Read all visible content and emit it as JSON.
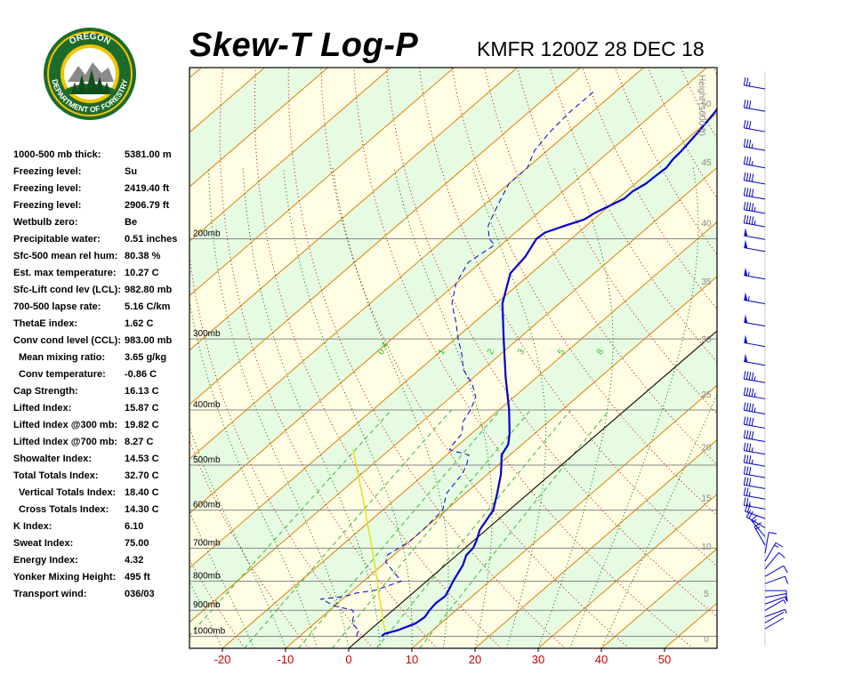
{
  "header": {
    "title": "Skew-T Log-P",
    "station": "KMFR 1200Z 28 DEC 18"
  },
  "logo": {
    "top_text": "OREGON",
    "bottom_text": "DEPARTMENT OF FORESTRY"
  },
  "indices": [
    {
      "label": "1000-500 mb thick:",
      "value": "5381.00 m",
      "indent": false
    },
    {
      "label": "Freezing level:",
      "value": "Su",
      "indent": false
    },
    {
      "label": "Freezing level:",
      "value": "2419.40 ft",
      "indent": false
    },
    {
      "label": "Freezing level:",
      "value": "2906.79 ft",
      "indent": false
    },
    {
      "label": "Wetbulb zero:",
      "value": "Be",
      "indent": false
    },
    {
      "label": "Precipitable water:",
      "value": "0.51 inches",
      "indent": false
    },
    {
      "label": "Sfc-500 mean rel hum:",
      "value": "80.38 %",
      "indent": false
    },
    {
      "label": "Est. max temperature:",
      "value": "10.27 C",
      "indent": false
    },
    {
      "label": "Sfc-Lift cond lev (LCL):",
      "value": "982.80 mb",
      "indent": false
    },
    {
      "label": "700-500 lapse rate:",
      "value": "5.16 C/km",
      "indent": false
    },
    {
      "label": "ThetaE index:",
      "value": "1.62 C",
      "indent": false
    },
    {
      "label": "Conv cond level (CCL):",
      "value": "983.00 mb",
      "indent": false
    },
    {
      "label": "Mean mixing ratio:",
      "value": "3.65 g/kg",
      "indent": true
    },
    {
      "label": "Conv temperature:",
      "value": "-0.86 C",
      "indent": true
    },
    {
      "label": "Cap Strength:",
      "value": "16.13 C",
      "indent": false
    },
    {
      "label": "Lifted Index:",
      "value": "15.87 C",
      "indent": false
    },
    {
      "label": "Lifted Index @300 mb:",
      "value": "19.82 C",
      "indent": false
    },
    {
      "label": "Lifted Index @700 mb:",
      "value": "8.27 C",
      "indent": false
    },
    {
      "label": "Showalter Index:",
      "value": "14.53 C",
      "indent": false
    },
    {
      "label": "Total Totals Index:",
      "value": "32.70 C",
      "indent": false
    },
    {
      "label": "Vertical Totals Index:",
      "value": "18.40 C",
      "indent": true
    },
    {
      "label": "Cross Totals Index:",
      "value": "14.30 C",
      "indent": true
    },
    {
      "label": "K Index:",
      "value": "6.10",
      "indent": false
    },
    {
      "label": "Sweat Index:",
      "value": "75.00",
      "indent": false
    },
    {
      "label": "Energy Index:",
      "value": "4.32",
      "indent": false
    },
    {
      "label": "Yonker Mixing Height:",
      "value": "495 ft",
      "indent": false
    },
    {
      "label": "Transport wind:",
      "value": "036/03",
      "indent": false
    }
  ],
  "chart_data": {
    "type": "skew-t log-p",
    "x_ticks": [
      -20,
      -10,
      0,
      10,
      20,
      30,
      40,
      50
    ],
    "xlim": [
      -26,
      58
    ],
    "plim": [
      1050,
      100
    ],
    "pressure_levels": [
      {
        "p": 1000,
        "label": "1000mb"
      },
      {
        "p": 900,
        "label": "900mb"
      },
      {
        "p": 800,
        "label": "800mb"
      },
      {
        "p": 700,
        "label": "700mb"
      },
      {
        "p": 600,
        "label": "600mb"
      },
      {
        "p": 500,
        "label": "500mb"
      },
      {
        "p": 400,
        "label": "400mb"
      },
      {
        "p": 300,
        "label": "300mb"
      },
      {
        "p": 200,
        "label": "200mb"
      }
    ],
    "height_axis": {
      "label": "Height (1000 ft)",
      "ticks": [
        {
          "v": 0,
          "p": 1013
        },
        {
          "v": 5,
          "p": 843
        },
        {
          "v": 10,
          "p": 697
        },
        {
          "v": 15,
          "p": 572
        },
        {
          "v": 20,
          "p": 466
        },
        {
          "v": 25,
          "p": 376
        },
        {
          "v": 30,
          "p": 301
        },
        {
          "v": 35,
          "p": 238
        },
        {
          "v": 40,
          "p": 188
        },
        {
          "v": 45,
          "p": 147
        },
        {
          "v": 50,
          "p": 116
        }
      ]
    },
    "mixing_ratio_labels": [
      "0.4",
      "1",
      "2",
      "3",
      "5",
      "8"
    ],
    "temperature": [
      {
        "p": 1000,
        "t": 3.0
      },
      {
        "p": 990,
        "t": 3.0
      },
      {
        "p": 975,
        "t": 4.5
      },
      {
        "p": 950,
        "t": 6.0
      },
      {
        "p": 925,
        "t": 6.3
      },
      {
        "p": 900,
        "t": 5.8
      },
      {
        "p": 875,
        "t": 5.5
      },
      {
        "p": 850,
        "t": 5.7
      },
      {
        "p": 825,
        "t": 5.0
      },
      {
        "p": 800,
        "t": 4.2
      },
      {
        "p": 750,
        "t": 2.8
      },
      {
        "p": 720,
        "t": 1.5
      },
      {
        "p": 700,
        "t": 1.3
      },
      {
        "p": 680,
        "t": 0.5
      },
      {
        "p": 650,
        "t": -1.0
      },
      {
        "p": 600,
        "t": -2.5
      },
      {
        "p": 560,
        "t": -5.0
      },
      {
        "p": 520,
        "t": -7.8
      },
      {
        "p": 500,
        "t": -9.5
      },
      {
        "p": 480,
        "t": -11.3
      },
      {
        "p": 460,
        "t": -12.2
      },
      {
        "p": 440,
        "t": -14.0
      },
      {
        "p": 400,
        "t": -18.4
      },
      {
        "p": 350,
        "t": -25.0
      },
      {
        "p": 300,
        "t": -32.3
      },
      {
        "p": 260,
        "t": -39.0
      },
      {
        "p": 230,
        "t": -43.3
      },
      {
        "p": 215,
        "t": -44.0
      },
      {
        "p": 200,
        "t": -45.5
      },
      {
        "p": 195,
        "t": -45.3
      },
      {
        "p": 190,
        "t": -43.5
      },
      {
        "p": 185,
        "t": -41.5
      },
      {
        "p": 180,
        "t": -41.0
      },
      {
        "p": 175,
        "t": -40.0
      },
      {
        "p": 170,
        "t": -39.0
      },
      {
        "p": 165,
        "t": -39.0
      },
      {
        "p": 160,
        "t": -38.3
      },
      {
        "p": 155,
        "t": -38.2
      },
      {
        "p": 150,
        "t": -38.0
      },
      {
        "p": 145,
        "t": -38.5
      },
      {
        "p": 140,
        "t": -38.7
      },
      {
        "p": 130,
        "t": -39.5
      },
      {
        "p": 120,
        "t": -40.5
      },
      {
        "p": 110,
        "t": -42.0
      },
      {
        "p": 105,
        "t": -43.0
      }
    ],
    "dewpoint": [
      {
        "p": 1000,
        "t": -1.0
      },
      {
        "p": 975,
        "t": -1.8
      },
      {
        "p": 950,
        "t": -4.0
      },
      {
        "p": 925,
        "t": -5.0
      },
      {
        "p": 900,
        "t": -6.3
      },
      {
        "p": 885,
        "t": -10.0
      },
      {
        "p": 870,
        "t": -12.0
      },
      {
        "p": 860,
        "t": -13.5
      },
      {
        "p": 850,
        "t": -10.0
      },
      {
        "p": 840,
        "t": -9.0
      },
      {
        "p": 830,
        "t": -6.5
      },
      {
        "p": 800,
        "t": -4.0
      },
      {
        "p": 780,
        "t": -6.0
      },
      {
        "p": 760,
        "t": -8.0
      },
      {
        "p": 740,
        "t": -10.0
      },
      {
        "p": 720,
        "t": -11.0
      },
      {
        "p": 700,
        "t": -10.5
      },
      {
        "p": 680,
        "t": -10.0
      },
      {
        "p": 650,
        "t": -10.0
      },
      {
        "p": 600,
        "t": -10.5
      },
      {
        "p": 560,
        "t": -13.0
      },
      {
        "p": 520,
        "t": -14.0
      },
      {
        "p": 500,
        "t": -15.0
      },
      {
        "p": 480,
        "t": -16.5
      },
      {
        "p": 470,
        "t": -20.5
      },
      {
        "p": 460,
        "t": -21.0
      },
      {
        "p": 440,
        "t": -21.5
      },
      {
        "p": 420,
        "t": -23.5
      },
      {
        "p": 400,
        "t": -24.5
      },
      {
        "p": 380,
        "t": -26.0
      },
      {
        "p": 360,
        "t": -29.0
      },
      {
        "p": 340,
        "t": -33.0
      },
      {
        "p": 320,
        "t": -36.0
      },
      {
        "p": 300,
        "t": -39.5
      },
      {
        "p": 280,
        "t": -43.0
      },
      {
        "p": 260,
        "t": -47.0
      },
      {
        "p": 240,
        "t": -50.0
      },
      {
        "p": 220,
        "t": -52.0
      },
      {
        "p": 205,
        "t": -51.0
      },
      {
        "p": 200,
        "t": -53.0
      },
      {
        "p": 190,
        "t": -55.5
      },
      {
        "p": 180,
        "t": -57.0
      },
      {
        "p": 170,
        "t": -58.5
      },
      {
        "p": 160,
        "t": -60.0
      },
      {
        "p": 150,
        "t": -60.0
      },
      {
        "p": 140,
        "t": -62.0
      },
      {
        "p": 130,
        "t": -63.0
      },
      {
        "p": 120,
        "t": -63.5
      },
      {
        "p": 110,
        "t": -63.5
      }
    ],
    "parcel": [
      {
        "p": 983,
        "t": 2.8
      },
      {
        "p": 950,
        "t": 1.0
      },
      {
        "p": 900,
        "t": -1.8
      },
      {
        "p": 850,
        "t": -4.8
      },
      {
        "p": 800,
        "t": -7.8
      },
      {
        "p": 750,
        "t": -11.1
      },
      {
        "p": 700,
        "t": -14.7
      },
      {
        "p": 650,
        "t": -18.6
      },
      {
        "p": 600,
        "t": -22.8
      },
      {
        "p": 550,
        "t": -27.4
      },
      {
        "p": 500,
        "t": -32.5
      },
      {
        "p": 470,
        "t": -35.8
      }
    ],
    "wind_profile": [
      {
        "p": 1000,
        "dir": 60,
        "spd": 3
      },
      {
        "p": 975,
        "dir": 60,
        "spd": 3
      },
      {
        "p": 950,
        "dir": 70,
        "spd": 5
      },
      {
        "p": 925,
        "dir": 60,
        "spd": 5
      },
      {
        "p": 900,
        "dir": 70,
        "spd": 5
      },
      {
        "p": 875,
        "dir": 80,
        "spd": 10
      },
      {
        "p": 850,
        "dir": 90,
        "spd": 10
      },
      {
        "p": 825,
        "dir": 70,
        "spd": 10
      },
      {
        "p": 800,
        "dir": 60,
        "spd": 10
      },
      {
        "p": 775,
        "dir": 40,
        "spd": 10
      },
      {
        "p": 750,
        "dir": 30,
        "spd": 15
      },
      {
        "p": 725,
        "dir": 10,
        "spd": 10
      },
      {
        "p": 700,
        "dir": 330,
        "spd": 15
      },
      {
        "p": 675,
        "dir": 320,
        "spd": 15
      },
      {
        "p": 650,
        "dir": 300,
        "spd": 20
      },
      {
        "p": 625,
        "dir": 290,
        "spd": 20
      },
      {
        "p": 600,
        "dir": 280,
        "spd": 25
      },
      {
        "p": 575,
        "dir": 280,
        "spd": 25
      },
      {
        "p": 550,
        "dir": 280,
        "spd": 30
      },
      {
        "p": 525,
        "dir": 280,
        "spd": 30
      },
      {
        "p": 500,
        "dir": 280,
        "spd": 35
      },
      {
        "p": 475,
        "dir": 280,
        "spd": 35
      },
      {
        "p": 450,
        "dir": 280,
        "spd": 40
      },
      {
        "p": 425,
        "dir": 280,
        "spd": 40
      },
      {
        "p": 400,
        "dir": 280,
        "spd": 45
      },
      {
        "p": 375,
        "dir": 280,
        "spd": 45
      },
      {
        "p": 350,
        "dir": 280,
        "spd": 45
      },
      {
        "p": 325,
        "dir": 280,
        "spd": 50
      },
      {
        "p": 300,
        "dir": 280,
        "spd": 50
      },
      {
        "p": 275,
        "dir": 280,
        "spd": 50
      },
      {
        "p": 250,
        "dir": 280,
        "spd": 55
      },
      {
        "p": 225,
        "dir": 280,
        "spd": 55
      },
      {
        "p": 200,
        "dir": 280,
        "spd": 50
      },
      {
        "p": 190,
        "dir": 280,
        "spd": 50
      },
      {
        "p": 180,
        "dir": 280,
        "spd": 45
      },
      {
        "p": 170,
        "dir": 280,
        "spd": 45
      },
      {
        "p": 160,
        "dir": 280,
        "spd": 40
      },
      {
        "p": 150,
        "dir": 280,
        "spd": 40
      },
      {
        "p": 140,
        "dir": 280,
        "spd": 35
      },
      {
        "p": 130,
        "dir": 280,
        "spd": 35
      },
      {
        "p": 120,
        "dir": 280,
        "spd": 30
      },
      {
        "p": 110,
        "dir": 280,
        "spd": 30
      },
      {
        "p": 100,
        "dir": 280,
        "spd": 25
      }
    ],
    "colors": {
      "temperature": "#0000cc",
      "dewpoint": "#0000cc",
      "parcel": "#e0e000",
      "isotherm": "#e08000",
      "dry_adiabat": "#cc0000",
      "moist_adiabat": "#006600",
      "mixing_ratio": "#33bb33",
      "isobar": "#888888",
      "band_a": "#fffde4",
      "band_b": "#e6fbe2",
      "wind_barb": "#0000cc"
    }
  }
}
